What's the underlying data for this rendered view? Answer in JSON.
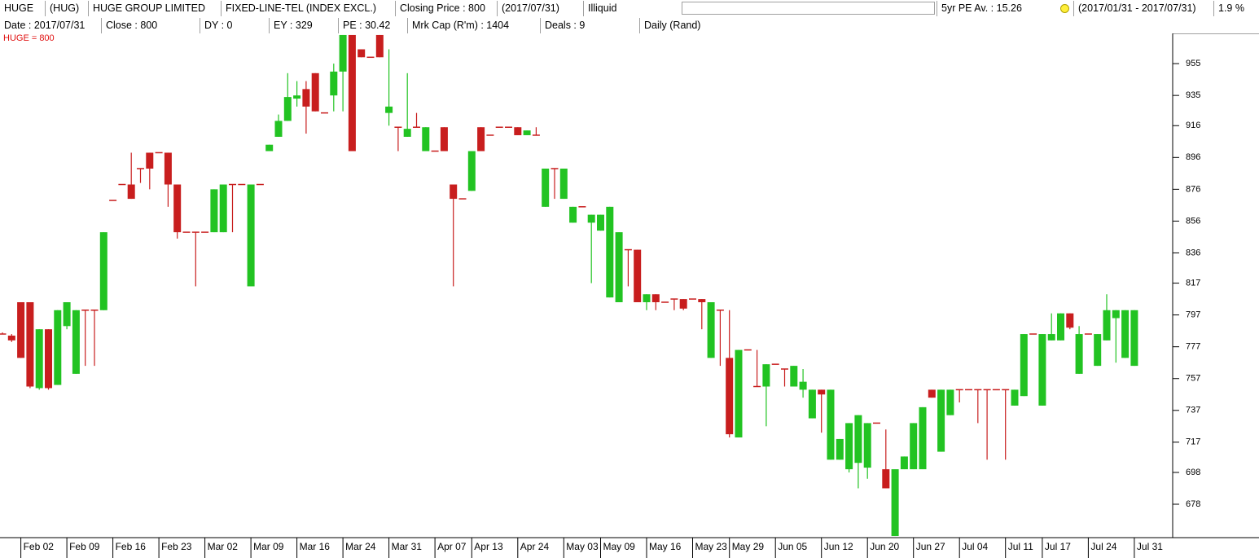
{
  "header": {
    "row1": [
      "HUGE",
      "(HUG)",
      "HUGE GROUP LIMITED",
      "FIXED-LINE-TEL (INDEX EXCL.)",
      "Closing Price : 800",
      "(2017/07/31)",
      "Illiquid",
      "5yr PE Av. : 15.26",
      "(2017/01/31 - 2017/07/31)",
      "1.9 %"
    ],
    "row2": [
      "Date : 2017/07/31",
      "Close : 800",
      "DY : 0",
      "EY : 329",
      "PE : 30.42",
      "Mrk Cap (R'm) : 1404",
      "Deals : 9",
      "Daily (Rand)"
    ]
  },
  "chart_data": {
    "type": "candlestick",
    "legend_label": "HUGE = 800",
    "up_color": "#22c322",
    "down_color": "#c81e1e",
    "ylim": [
      657,
      974
    ],
    "yticks": [
      955,
      935,
      916,
      896,
      876,
      856,
      836,
      817,
      797,
      777,
      757,
      737,
      717,
      698,
      678
    ],
    "categories": [
      null,
      null,
      "Feb 02",
      null,
      null,
      null,
      null,
      "Feb 09",
      null,
      null,
      null,
      null,
      "Feb 16",
      null,
      null,
      null,
      null,
      "Feb 23",
      null,
      null,
      null,
      null,
      "Mar 02",
      null,
      null,
      null,
      null,
      "Mar 09",
      null,
      null,
      null,
      null,
      "Mar 16",
      null,
      null,
      null,
      null,
      "Mar 24",
      null,
      null,
      null,
      null,
      "Mar 31",
      null,
      null,
      null,
      null,
      "Apr 07",
      null,
      null,
      null,
      "Apr 13",
      null,
      null,
      null,
      null,
      "Apr 24",
      null,
      null,
      null,
      null,
      "May 03",
      null,
      null,
      null,
      "May 09",
      null,
      null,
      null,
      null,
      "May 16",
      null,
      null,
      null,
      null,
      "May 23",
      null,
      null,
      null,
      "May 29",
      null,
      null,
      null,
      null,
      "Jun 05",
      null,
      null,
      null,
      null,
      "Jun 12",
      null,
      null,
      null,
      null,
      "Jun 20",
      null,
      null,
      null,
      null,
      "Jun 27",
      null,
      null,
      null,
      null,
      "Jul 04",
      null,
      null,
      null,
      null,
      "Jul 11",
      null,
      null,
      null,
      "Jul 17",
      null,
      null,
      null,
      null,
      "Jul 24",
      null,
      null,
      null,
      null,
      "Jul 31"
    ],
    "open": [
      785,
      784,
      805,
      805,
      751,
      788,
      753,
      790,
      760,
      800,
      800,
      800,
      869,
      879,
      879,
      889,
      899,
      899,
      899,
      879,
      849,
      849,
      849,
      849,
      849,
      879,
      879,
      815,
      879,
      900,
      909,
      919,
      933,
      939,
      949,
      924,
      935,
      950,
      973,
      964,
      959,
      973,
      924,
      915,
      909,
      915,
      900,
      900,
      915,
      879,
      870,
      875,
      915,
      910,
      915,
      915,
      915,
      910,
      910,
      865,
      889,
      870,
      855,
      865,
      855,
      850,
      808,
      805,
      838,
      838,
      805,
      810,
      805,
      807,
      807,
      807,
      807,
      770,
      800,
      770,
      720,
      775,
      752,
      752,
      766,
      763,
      752,
      750,
      732,
      750,
      706,
      706,
      700,
      704,
      701,
      729,
      700,
      658,
      700,
      700,
      700,
      750,
      711,
      734,
      750,
      750,
      750,
      750,
      750,
      750,
      740,
      746,
      785,
      740,
      781,
      781,
      798,
      760,
      785,
      765,
      781,
      795,
      770,
      765
    ],
    "high": [
      786,
      785,
      805,
      805,
      788,
      788,
      800,
      805,
      800,
      800,
      800,
      849,
      869,
      879,
      899,
      889,
      899,
      899,
      899,
      879,
      849,
      849,
      849,
      876,
      879,
      879,
      879,
      879,
      879,
      904,
      923,
      949,
      944,
      944,
      949,
      924,
      955,
      973,
      973,
      964,
      959,
      973,
      964,
      915,
      949,
      924,
      915,
      900,
      915,
      879,
      870,
      900,
      915,
      910,
      915,
      915,
      915,
      913,
      915,
      889,
      889,
      889,
      865,
      865,
      860,
      860,
      865,
      849,
      838,
      838,
      810,
      810,
      805,
      807,
      807,
      807,
      807,
      805,
      800,
      800,
      775,
      775,
      775,
      766,
      766,
      763,
      765,
      763,
      750,
      750,
      750,
      719,
      729,
      734,
      729,
      729,
      725,
      700,
      708,
      729,
      739,
      750,
      750,
      750,
      750,
      750,
      750,
      750,
      750,
      750,
      750,
      785,
      785,
      785,
      798,
      798,
      798,
      790,
      785,
      785,
      810,
      800,
      800,
      800
    ],
    "low": [
      785,
      780,
      770,
      751,
      750,
      750,
      753,
      788,
      760,
      765,
      765,
      800,
      869,
      879,
      870,
      880,
      876,
      899,
      865,
      845,
      849,
      815,
      849,
      849,
      849,
      849,
      879,
      815,
      879,
      900,
      909,
      919,
      928,
      911,
      925,
      924,
      925,
      925,
      900,
      959,
      959,
      959,
      916,
      900,
      909,
      915,
      900,
      900,
      900,
      815,
      870,
      875,
      900,
      910,
      915,
      915,
      910,
      910,
      910,
      865,
      870,
      870,
      855,
      865,
      817,
      850,
      808,
      805,
      815,
      805,
      800,
      800,
      805,
      800,
      800,
      807,
      788,
      770,
      765,
      720,
      720,
      775,
      752,
      727,
      766,
      752,
      752,
      745,
      732,
      723,
      706,
      706,
      698,
      688,
      694,
      729,
      688,
      658,
      700,
      700,
      700,
      745,
      711,
      734,
      742,
      750,
      729,
      706,
      750,
      706,
      740,
      746,
      785,
      740,
      781,
      781,
      788,
      760,
      785,
      765,
      781,
      767,
      770,
      765
    ],
    "close": [
      785,
      781,
      770,
      752,
      788,
      751,
      800,
      805,
      800,
      800,
      800,
      849,
      869,
      879,
      870,
      889,
      889,
      899,
      879,
      849,
      849,
      849,
      849,
      876,
      879,
      879,
      879,
      879,
      879,
      904,
      919,
      934,
      935,
      928,
      925,
      924,
      950,
      973,
      900,
      959,
      959,
      959,
      928,
      915,
      914,
      915,
      915,
      900,
      900,
      870,
      870,
      900,
      900,
      910,
      915,
      915,
      910,
      913,
      910,
      889,
      889,
      889,
      865,
      865,
      860,
      860,
      865,
      849,
      838,
      805,
      810,
      805,
      805,
      807,
      801,
      807,
      805,
      805,
      800,
      722,
      775,
      775,
      752,
      766,
      766,
      763,
      765,
      755,
      750,
      747,
      750,
      719,
      729,
      734,
      729,
      729,
      688,
      700,
      708,
      729,
      739,
      745,
      750,
      750,
      750,
      750,
      750,
      750,
      750,
      750,
      750,
      785,
      785,
      785,
      785,
      798,
      789,
      785,
      785,
      785,
      800,
      800,
      800,
      800
    ]
  }
}
